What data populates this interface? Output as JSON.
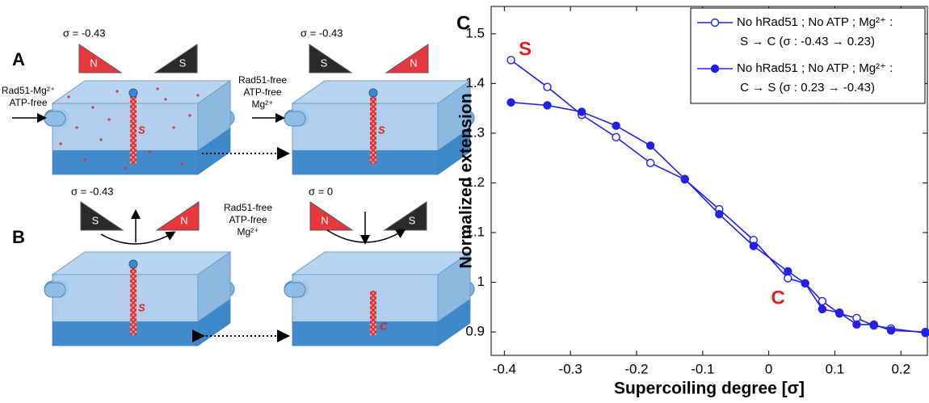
{
  "diagram": {
    "panel_a": {
      "label": "A",
      "left": {
        "sigma": "σ = -0.43",
        "magnet_left": "N",
        "magnet_right": "S",
        "rod": "S",
        "inlet": [
          "Rad51-Mg²⁺",
          "ATP-free"
        ]
      },
      "right": {
        "sigma": "σ = -0.43",
        "magnet_left": "S",
        "magnet_right": "N",
        "rod": "S",
        "inlet": [
          "Rad51-free",
          "ATP-free",
          "Mg²⁺"
        ]
      }
    },
    "panel_b": {
      "label": "B",
      "condition": [
        "Rad51-free",
        "ATP-free",
        "Mg²⁺"
      ],
      "left": {
        "sigma": "σ = -0.43",
        "magnet_left": "S",
        "magnet_right": "N",
        "rod": "S"
      },
      "right": {
        "sigma": "σ = 0",
        "magnet_left": "N",
        "magnet_right": "S",
        "rod": "C"
      }
    }
  },
  "chart_data": {
    "type": "line",
    "panel_label": "C",
    "x_label": "Supercoiling degree [σ]",
    "y_label": "Normalized extension",
    "x": [
      -0.39,
      -0.335,
      -0.283,
      -0.231,
      -0.179,
      -0.127,
      -0.075,
      -0.023,
      0.029,
      0.055,
      0.081,
      0.107,
      0.133,
      0.159,
      0.185,
      0.237
    ],
    "series": [
      {
        "name": "No hRad51 ; No ATP ; Mg²⁺ :\nS → C (σ : -0.43 → 0.23)",
        "color": "#2222e6",
        "marker": "open",
        "values": [
          1.447,
          1.393,
          1.337,
          1.292,
          1.24,
          1.207,
          1.147,
          1.085,
          1.008,
          0.998,
          0.962,
          0.937,
          0.928,
          0.913,
          0.907,
          0.898
        ]
      },
      {
        "name": "No hRad51 ; No ATP ; Mg²⁺ :\nC → S (σ : 0.23 → -0.43)",
        "color": "#2222e6",
        "marker": "filled",
        "values": [
          1.362,
          1.356,
          1.343,
          1.315,
          1.275,
          1.208,
          1.137,
          1.073,
          1.022,
          0.998,
          0.946,
          0.939,
          0.915,
          0.915,
          0.903,
          0.9
        ]
      }
    ],
    "annotations": [
      {
        "text": "S",
        "color": "#e02020"
      },
      {
        "text": "C",
        "color": "#e02020"
      }
    ],
    "xlim": [
      -0.42,
      0.24
    ],
    "ylim": [
      0.853,
      1.555
    ],
    "xticks": [
      -0.4,
      -0.3,
      -0.2,
      -0.1,
      0,
      0.1,
      0.2
    ],
    "yticks": [
      0.9,
      1,
      1.1,
      1.2,
      1.3,
      1.4,
      1.5
    ],
    "legend": "upper right"
  }
}
